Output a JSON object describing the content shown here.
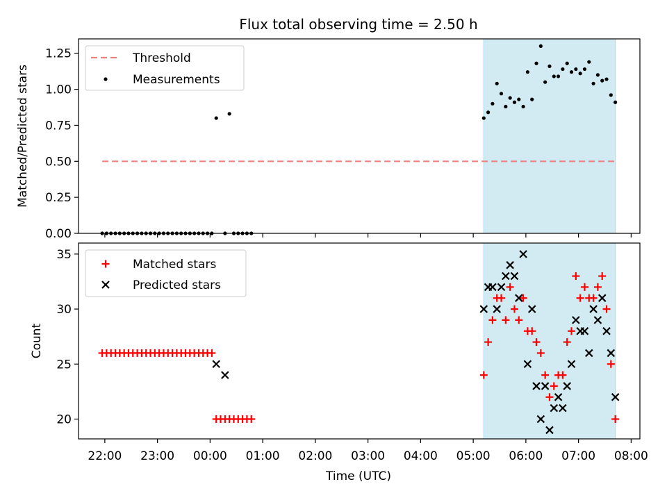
{
  "figure": {
    "title": "Flux total observing time = 2.50 h",
    "xlabel": "Time (UTC)"
  },
  "colors": {
    "threshold": "#f08080",
    "measurements": "#000000",
    "matched": "#ff0000",
    "predicted": "#000000",
    "shade": "#add8e6"
  },
  "chart_data": [
    {
      "type": "scatter",
      "ylabel": "Matched/Predicted stars",
      "ylim": [
        0,
        1.35
      ],
      "xlim": [
        "21:30",
        "08:10"
      ],
      "yticks": [
        0,
        0.25,
        0.5,
        0.75,
        1.0,
        1.25
      ],
      "ytick_labels": [
        "0.00",
        "0.25",
        "0.50",
        "0.75",
        "1.00",
        "1.25"
      ],
      "shaded_span": [
        "05:12",
        "07:42"
      ],
      "legend_position": "upper-left",
      "threshold": {
        "name": "Threshold",
        "value": 0.5,
        "x_range": [
          "21:57",
          "07:42"
        ]
      },
      "series": [
        {
          "name": "Measurements",
          "points": [
            [
              "21:57",
              0
            ],
            [
              "22:02",
              0
            ],
            [
              "22:07",
              0
            ],
            [
              "22:12",
              0
            ],
            [
              "22:17",
              0
            ],
            [
              "22:22",
              0
            ],
            [
              "22:27",
              0
            ],
            [
              "22:32",
              0
            ],
            [
              "22:37",
              0
            ],
            [
              "22:42",
              0
            ],
            [
              "22:47",
              0
            ],
            [
              "22:52",
              0
            ],
            [
              "22:57",
              0
            ],
            [
              "23:02",
              0
            ],
            [
              "23:07",
              0
            ],
            [
              "23:12",
              0
            ],
            [
              "23:17",
              0
            ],
            [
              "23:22",
              0
            ],
            [
              "23:27",
              0
            ],
            [
              "23:32",
              0
            ],
            [
              "23:37",
              0
            ],
            [
              "23:42",
              0
            ],
            [
              "23:47",
              0
            ],
            [
              "23:52",
              0
            ],
            [
              "23:57",
              0
            ],
            [
              "00:02",
              0
            ],
            [
              "00:07",
              0.8
            ],
            [
              "00:17",
              0
            ],
            [
              "00:22",
              0.83
            ],
            [
              "00:27",
              0
            ],
            [
              "00:32",
              0
            ],
            [
              "00:37",
              0
            ],
            [
              "00:42",
              0
            ],
            [
              "00:47",
              0
            ],
            [
              "05:12",
              0.8
            ],
            [
              "05:17",
              0.84
            ],
            [
              "05:22",
              0.9
            ],
            [
              "05:27",
              1.04
            ],
            [
              "05:32",
              0.97
            ],
            [
              "05:37",
              0.88
            ],
            [
              "05:42",
              0.94
            ],
            [
              "05:47",
              0.91
            ],
            [
              "05:52",
              0.93
            ],
            [
              "05:57",
              0.88
            ],
            [
              "06:02",
              1.12
            ],
            [
              "06:07",
              0.93
            ],
            [
              "06:12",
              1.18
            ],
            [
              "06:17",
              1.3
            ],
            [
              "06:22",
              1.05
            ],
            [
              "06:27",
              1.16
            ],
            [
              "06:32",
              1.09
            ],
            [
              "06:37",
              1.09
            ],
            [
              "06:42",
              1.14
            ],
            [
              "06:47",
              1.18
            ],
            [
              "06:52",
              1.12
            ],
            [
              "06:57",
              1.14
            ],
            [
              "07:02",
              1.11
            ],
            [
              "07:07",
              1.14
            ],
            [
              "07:12",
              1.19
            ],
            [
              "07:17",
              1.04
            ],
            [
              "07:22",
              1.1
            ],
            [
              "07:27",
              1.06
            ],
            [
              "07:32",
              1.07
            ],
            [
              "07:37",
              0.96
            ],
            [
              "07:42",
              0.91
            ]
          ]
        }
      ]
    },
    {
      "type": "scatter",
      "ylabel": "Count",
      "ylim": [
        18.2,
        36
      ],
      "xlim": [
        "21:30",
        "08:10"
      ],
      "yticks": [
        20,
        25,
        30,
        35
      ],
      "ytick_labels": [
        "20",
        "25",
        "30",
        "35"
      ],
      "xticks": [
        "22:00",
        "23:00",
        "00:00",
        "01:00",
        "02:00",
        "03:00",
        "04:00",
        "05:00",
        "06:00",
        "07:00",
        "08:00"
      ],
      "shaded_span": [
        "05:12",
        "07:42"
      ],
      "legend_position": "upper-left",
      "series": [
        {
          "name": "Matched stars",
          "marker": "plus",
          "points": [
            [
              "21:57",
              26
            ],
            [
              "22:02",
              26
            ],
            [
              "22:07",
              26
            ],
            [
              "22:12",
              26
            ],
            [
              "22:17",
              26
            ],
            [
              "22:22",
              26
            ],
            [
              "22:27",
              26
            ],
            [
              "22:32",
              26
            ],
            [
              "22:37",
              26
            ],
            [
              "22:42",
              26
            ],
            [
              "22:47",
              26
            ],
            [
              "22:52",
              26
            ],
            [
              "22:57",
              26
            ],
            [
              "23:02",
              26
            ],
            [
              "23:07",
              26
            ],
            [
              "23:12",
              26
            ],
            [
              "23:17",
              26
            ],
            [
              "23:22",
              26
            ],
            [
              "23:27",
              26
            ],
            [
              "23:32",
              26
            ],
            [
              "23:37",
              26
            ],
            [
              "23:42",
              26
            ],
            [
              "23:47",
              26
            ],
            [
              "23:52",
              26
            ],
            [
              "23:57",
              26
            ],
            [
              "00:02",
              26
            ],
            [
              "00:07",
              20
            ],
            [
              "00:12",
              20
            ],
            [
              "00:17",
              20
            ],
            [
              "00:22",
              20
            ],
            [
              "00:27",
              20
            ],
            [
              "00:32",
              20
            ],
            [
              "00:37",
              20
            ],
            [
              "00:42",
              20
            ],
            [
              "00:47",
              20
            ],
            [
              "05:12",
              24
            ],
            [
              "05:17",
              27
            ],
            [
              "05:22",
              29
            ],
            [
              "05:27",
              31
            ],
            [
              "05:32",
              31
            ],
            [
              "05:37",
              29
            ],
            [
              "05:42",
              32
            ],
            [
              "05:47",
              30
            ],
            [
              "05:52",
              29
            ],
            [
              "05:57",
              31
            ],
            [
              "06:02",
              28
            ],
            [
              "06:07",
              28
            ],
            [
              "06:12",
              27
            ],
            [
              "06:17",
              26
            ],
            [
              "06:22",
              24
            ],
            [
              "06:27",
              22
            ],
            [
              "06:32",
              23
            ],
            [
              "06:37",
              24
            ],
            [
              "06:42",
              24
            ],
            [
              "06:47",
              27
            ],
            [
              "06:52",
              28
            ],
            [
              "06:57",
              33
            ],
            [
              "07:02",
              31
            ],
            [
              "07:07",
              32
            ],
            [
              "07:12",
              31
            ],
            [
              "07:17",
              31
            ],
            [
              "07:22",
              32
            ],
            [
              "07:27",
              33
            ],
            [
              "07:32",
              30
            ],
            [
              "07:37",
              25
            ],
            [
              "07:42",
              20
            ]
          ]
        },
        {
          "name": "Predicted stars",
          "marker": "x",
          "points": [
            [
              "00:07",
              25
            ],
            [
              "00:17",
              24
            ],
            [
              "05:12",
              30
            ],
            [
              "05:17",
              32
            ],
            [
              "05:22",
              32
            ],
            [
              "05:27",
              30
            ],
            [
              "05:32",
              32
            ],
            [
              "05:37",
              33
            ],
            [
              "05:42",
              34
            ],
            [
              "05:47",
              33
            ],
            [
              "05:52",
              31
            ],
            [
              "05:57",
              35
            ],
            [
              "06:02",
              25
            ],
            [
              "06:07",
              30
            ],
            [
              "06:12",
              23
            ],
            [
              "06:17",
              20
            ],
            [
              "06:22",
              23
            ],
            [
              "06:27",
              19
            ],
            [
              "06:32",
              21
            ],
            [
              "06:37",
              22
            ],
            [
              "06:42",
              21
            ],
            [
              "06:47",
              23
            ],
            [
              "06:52",
              25
            ],
            [
              "06:57",
              29
            ],
            [
              "07:02",
              28
            ],
            [
              "07:07",
              28
            ],
            [
              "07:12",
              26
            ],
            [
              "07:17",
              30
            ],
            [
              "07:22",
              29
            ],
            [
              "07:27",
              31
            ],
            [
              "07:32",
              28
            ],
            [
              "07:37",
              26
            ],
            [
              "07:42",
              22
            ]
          ]
        }
      ]
    }
  ]
}
